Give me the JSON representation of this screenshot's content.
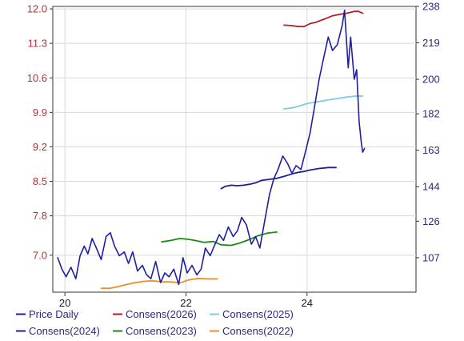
{
  "chart_data": {
    "type": "line",
    "title": "",
    "xlabel": "",
    "ylabel": "",
    "x_ticks": [
      "20",
      "22",
      "24"
    ],
    "x_range": [
      2019.8,
      2025.8
    ],
    "x_tick_values": [
      2020,
      2022,
      2024
    ],
    "left_axis": {
      "ticks": [
        "12.0",
        "11.3",
        "10.6",
        "9.9",
        "9.2",
        "8.5",
        "7.8",
        "7.0"
      ],
      "tick_values": [
        12.0,
        11.3,
        10.6,
        9.9,
        9.2,
        8.5,
        7.8,
        7.0
      ],
      "ylim": [
        6.25,
        12.05
      ]
    },
    "right_axis": {
      "ticks": [
        "238",
        "219",
        "200",
        "182",
        "163",
        "144",
        "126",
        "107"
      ],
      "tick_values": [
        238,
        219,
        200,
        182,
        163,
        144,
        126,
        107
      ],
      "ylim": [
        89,
        238
      ]
    },
    "grid": true,
    "legend_position": "bottom",
    "price_series": {
      "name": "Price Daily",
      "color": "#1f1f9f",
      "axis": "right",
      "x": [
        2019.88,
        2019.95,
        2020.02,
        2020.1,
        2020.18,
        2020.25,
        2020.32,
        2020.38,
        2020.45,
        2020.52,
        2020.6,
        2020.68,
        2020.75,
        2020.82,
        2020.9,
        2020.98,
        2021.05,
        2021.12,
        2021.2,
        2021.28,
        2021.35,
        2021.42,
        2021.5,
        2021.58,
        2021.65,
        2021.72,
        2021.8,
        2021.88,
        2021.95,
        2022.02,
        2022.1,
        2022.18,
        2022.25,
        2022.32,
        2022.4,
        2022.48,
        2022.55,
        2022.62,
        2022.7,
        2022.78,
        2022.85,
        2022.92,
        2023.0,
        2023.08,
        2023.15,
        2023.22,
        2023.3,
        2023.38,
        2023.45,
        2023.52,
        2023.6,
        2023.68,
        2023.75,
        2023.82,
        2023.9,
        2023.98,
        2024.05,
        2024.12,
        2024.2,
        2024.28,
        2024.35,
        2024.42,
        2024.5,
        2024.58,
        2024.62,
        2024.68,
        2024.72,
        2024.78,
        2024.82,
        2024.86,
        2024.9,
        2024.92,
        2024.95
      ],
      "values": [
        107,
        101,
        97,
        102,
        96,
        108,
        113,
        109,
        117,
        112,
        106,
        118,
        120,
        113,
        108,
        110,
        104,
        110,
        100,
        103,
        98,
        96,
        105,
        94,
        99,
        97,
        101,
        93,
        107,
        99,
        103,
        98,
        101,
        112,
        108,
        114,
        119,
        116,
        123,
        118,
        121,
        128,
        124,
        114,
        118,
        112,
        126,
        140,
        148,
        153,
        160,
        156,
        151,
        155,
        153,
        163,
        172,
        185,
        200,
        212,
        222,
        215,
        218,
        228,
        236,
        206,
        222,
        200,
        205,
        178,
        166,
        162,
        164
      ]
    },
    "series": [
      {
        "name": "Consens(2026)",
        "color": "#b0202a",
        "axis": "left",
        "x": [
          2023.62,
          2023.75,
          2023.85,
          2023.95,
          2024.05,
          2024.15,
          2024.3,
          2024.42,
          2024.55,
          2024.65,
          2024.72,
          2024.78,
          2024.85,
          2024.92
        ],
        "values": [
          11.67,
          11.66,
          11.64,
          11.64,
          11.7,
          11.73,
          11.8,
          11.86,
          11.89,
          11.91,
          11.93,
          11.95,
          11.95,
          11.91
        ]
      },
      {
        "name": "Consens(2025)",
        "color": "#80c8e8",
        "axis": "left",
        "x": [
          2023.62,
          2023.75,
          2023.85,
          2023.95,
          2024.05,
          2024.2,
          2024.35,
          2024.5,
          2024.65,
          2024.8,
          2024.92
        ],
        "values": [
          9.97,
          9.99,
          10.02,
          10.06,
          10.09,
          10.12,
          10.15,
          10.18,
          10.21,
          10.23,
          10.23
        ]
      },
      {
        "name": "Consens(2024)",
        "color": "#1f1f9f",
        "axis": "left",
        "x": [
          2022.58,
          2022.65,
          2022.75,
          2022.85,
          2022.95,
          2023.05,
          2023.15,
          2023.25,
          2023.38,
          2023.5,
          2023.62,
          2023.75,
          2023.85,
          2023.95,
          2024.05,
          2024.2,
          2024.35,
          2024.48
        ],
        "values": [
          8.35,
          8.4,
          8.42,
          8.41,
          8.42,
          8.44,
          8.47,
          8.52,
          8.54,
          8.56,
          8.6,
          8.65,
          8.68,
          8.7,
          8.73,
          8.76,
          8.78,
          8.78
        ]
      },
      {
        "name": "Consens(2023)",
        "color": "#1a8a1a",
        "axis": "left",
        "x": [
          2021.6,
          2021.75,
          2021.9,
          2022.05,
          2022.15,
          2022.3,
          2022.45,
          2022.58,
          2022.75,
          2022.9,
          2023.05,
          2023.2,
          2023.35,
          2023.5
        ],
        "values": [
          7.27,
          7.3,
          7.34,
          7.32,
          7.3,
          7.26,
          7.28,
          7.21,
          7.2,
          7.25,
          7.32,
          7.4,
          7.45,
          7.47
        ]
      },
      {
        "name": "Consens(2022)",
        "color": "#f08c30",
        "axis": "left",
        "x": [
          2020.6,
          2020.75,
          2020.9,
          2021.0,
          2021.15,
          2021.3,
          2021.45,
          2021.6,
          2021.75,
          2021.9,
          2022.05,
          2022.2,
          2022.35,
          2022.52
        ],
        "values": [
          6.33,
          6.33,
          6.37,
          6.4,
          6.44,
          6.47,
          6.48,
          6.46,
          6.46,
          6.44,
          6.5,
          6.53,
          6.52,
          6.52
        ]
      }
    ],
    "legend": [
      {
        "name": "Price Daily",
        "color": "#1f1f9f"
      },
      {
        "name": "Consens(2026)",
        "color": "#b0202a"
      },
      {
        "name": "Consens(2025)",
        "color": "#80c8e8"
      },
      {
        "name": "Consens(2024)",
        "color": "#1f1f9f"
      },
      {
        "name": "Consens(2023)",
        "color": "#1a8a1a"
      },
      {
        "name": "Consens(2022)",
        "color": "#f08c30"
      }
    ]
  }
}
